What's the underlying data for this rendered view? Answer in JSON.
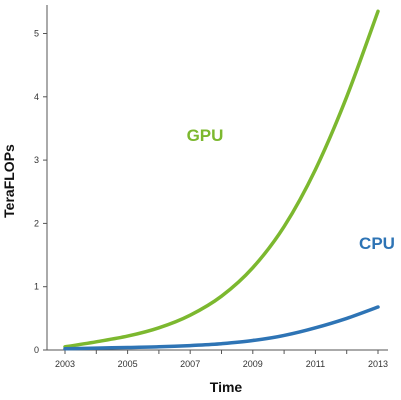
{
  "chart_data": {
    "type": "line",
    "xlabel": "Time",
    "ylabel": "TeraFLOPs",
    "xlim": [
      2003,
      2013
    ],
    "ylim": [
      0,
      5.5
    ],
    "x_ticks": [
      "2003",
      "2005",
      "2007",
      "2009",
      "2011",
      "2013"
    ],
    "y_ticks": [
      "0",
      "1",
      "2",
      "3",
      "4",
      "5"
    ],
    "grid": false,
    "series": [
      {
        "name": "GPU",
        "color": "#7cb82f",
        "x": [
          2003,
          2004,
          2005,
          2006,
          2007,
          2008,
          2009,
          2010,
          2011,
          2012,
          2013
        ],
        "values": [
          0.05,
          0.13,
          0.22,
          0.35,
          0.55,
          0.85,
          1.3,
          1.95,
          2.85,
          4.0,
          5.35
        ]
      },
      {
        "name": "CPU",
        "color": "#2e74b5",
        "x": [
          2003,
          2004,
          2005,
          2006,
          2007,
          2008,
          2009,
          2010,
          2011,
          2012,
          2013
        ],
        "values": [
          0.02,
          0.03,
          0.04,
          0.05,
          0.07,
          0.1,
          0.15,
          0.23,
          0.35,
          0.5,
          0.68
        ]
      }
    ]
  }
}
